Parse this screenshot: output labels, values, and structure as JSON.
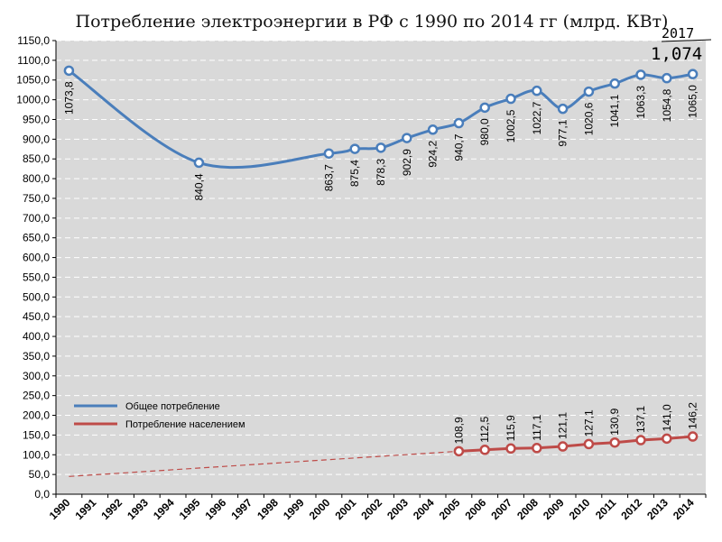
{
  "chart_data": {
    "type": "line",
    "title": "Потребление электроэнергии в РФ с 1990 по 2014 гг (млрд. КВт)",
    "categories": [
      "1990",
      "1991",
      "1992",
      "1993",
      "1994",
      "1995",
      "1996",
      "1997",
      "1998",
      "1999",
      "2000",
      "2001",
      "2002",
      "2003",
      "2004",
      "2005",
      "2006",
      "2007",
      "2008",
      "2009",
      "2010",
      "2011",
      "2012",
      "2013",
      "2014"
    ],
    "ylim": [
      0,
      1150
    ],
    "y_ticks": [
      "0,0",
      "50,0",
      "100,0",
      "150,0",
      "200,0",
      "250,0",
      "300,0",
      "350,0",
      "400,0",
      "450,0",
      "500,0",
      "550,0",
      "600,0",
      "650,0",
      "700,0",
      "750,0",
      "800,0",
      "850,0",
      "900,0",
      "950,0",
      "1000,0",
      "1050,0",
      "1100,0",
      "1150,0"
    ],
    "grid": true,
    "legend_position": "bottom-left",
    "series": [
      {
        "name": "Общее потребление",
        "color": "#4a7ebb",
        "marker_fill": "#ffffff",
        "points": [
          {
            "x": "1990",
            "y": 1073.8,
            "label": "1073,8"
          },
          {
            "x": "1995",
            "y": 840.4,
            "label": "840,4"
          },
          {
            "x": "2000",
            "y": 863.7,
            "label": "863,7"
          },
          {
            "x": "2001",
            "y": 875.4,
            "label": "875,4"
          },
          {
            "x": "2002",
            "y": 878.3,
            "label": "878,3"
          },
          {
            "x": "2003",
            "y": 902.9,
            "label": "902,9"
          },
          {
            "x": "2004",
            "y": 924.2,
            "label": "924,2"
          },
          {
            "x": "2005",
            "y": 940.7,
            "label": "940,7"
          },
          {
            "x": "2006",
            "y": 980.0,
            "label": "980,0"
          },
          {
            "x": "2007",
            "y": 1002.5,
            "label": "1002,5"
          },
          {
            "x": "2008",
            "y": 1022.7,
            "label": "1022,7"
          },
          {
            "x": "2009",
            "y": 977.1,
            "label": "977,1"
          },
          {
            "x": "2010",
            "y": 1020.6,
            "label": "1020,6"
          },
          {
            "x": "2011",
            "y": 1041.1,
            "label": "1041,1"
          },
          {
            "x": "2012",
            "y": 1063.3,
            "label": "1063,3"
          },
          {
            "x": "2013",
            "y": 1054.8,
            "label": "1054,8"
          },
          {
            "x": "2014",
            "y": 1065.0,
            "label": "1065,0"
          }
        ]
      },
      {
        "name": "Потребление населением",
        "color": "#be4b48",
        "marker_fill": "#ffffff",
        "points": [
          {
            "x": "2005",
            "y": 108.9,
            "label": "108,9"
          },
          {
            "x": "2006",
            "y": 112.5,
            "label": "112,5"
          },
          {
            "x": "2007",
            "y": 115.9,
            "label": "115,9"
          },
          {
            "x": "2008",
            "y": 117.1,
            "label": "117,1"
          },
          {
            "x": "2009",
            "y": 121.1,
            "label": "121,1"
          },
          {
            "x": "2010",
            "y": 127.1,
            "label": "127,1"
          },
          {
            "x": "2011",
            "y": 130.9,
            "label": "130,9"
          },
          {
            "x": "2012",
            "y": 137.1,
            "label": "137,1"
          },
          {
            "x": "2013",
            "y": 141.0,
            "label": "141,0"
          },
          {
            "x": "2014",
            "y": 146.2,
            "label": "146,2"
          }
        ],
        "trend": {
          "style": "dashed",
          "from": {
            "x": "1990",
            "y": 45
          },
          "to": {
            "x": "2005",
            "y": 108.9
          }
        }
      }
    ],
    "annotations": [
      {
        "text_line1": "2017",
        "text_line2": "1,074",
        "style": "handwritten"
      }
    ],
    "colors": {
      "plot_bg": "#d9d9d9",
      "grid": "#ffffff"
    }
  }
}
